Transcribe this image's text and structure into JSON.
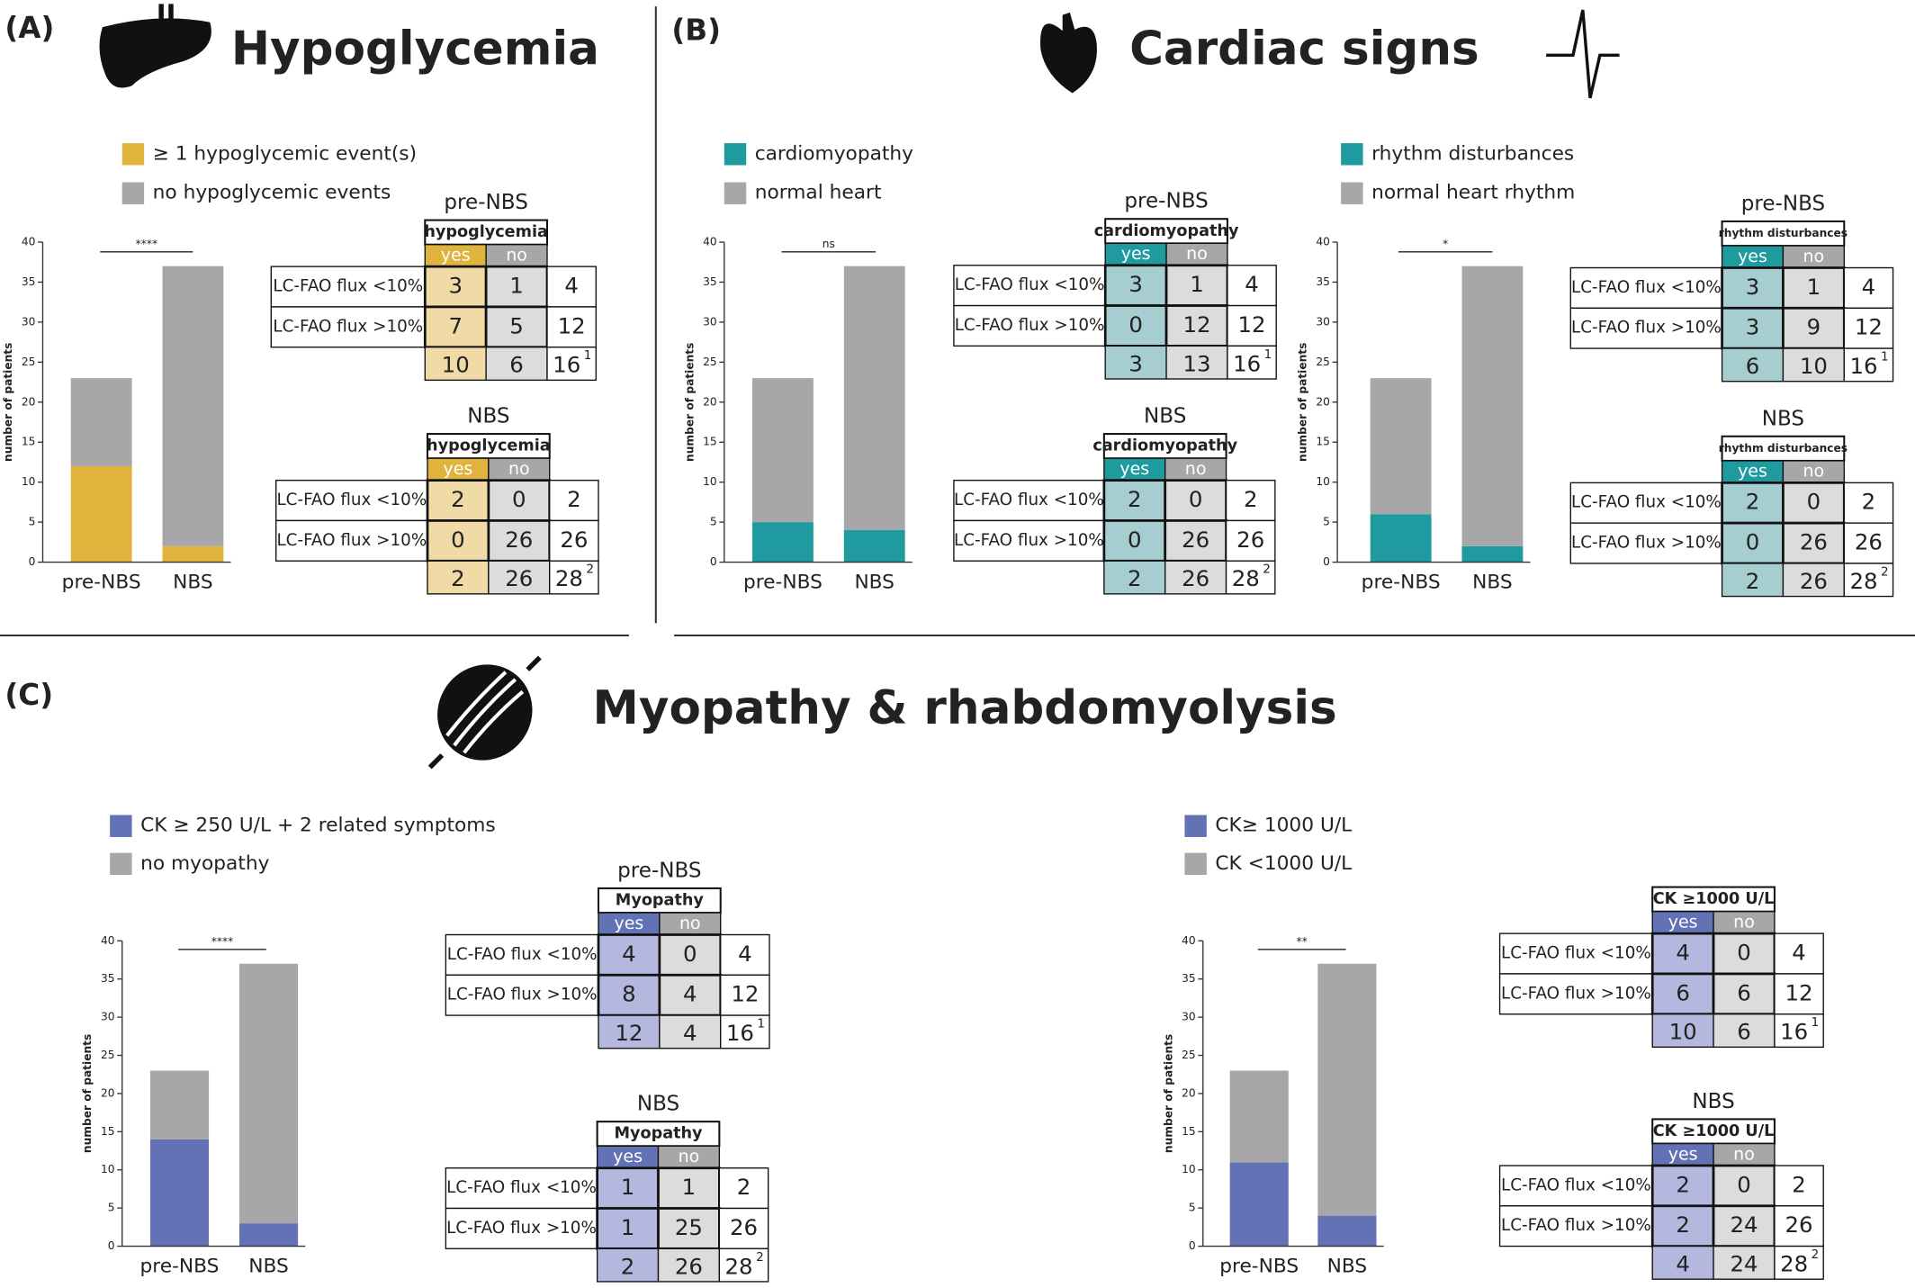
{
  "panels": [
    {
      "label": "(A)",
      "title": "Hypoglycemia"
    },
    {
      "label": "(B)",
      "title": "Cardiac signs"
    },
    {
      "label": "(C)",
      "title": "Myopathy & rhabdomyolysis"
    }
  ],
  "chart_data": [
    {
      "type": "bar",
      "stacked": true,
      "categories": [
        "pre-NBS",
        "NBS"
      ],
      "ylabel": "number of patients",
      "ylim": [
        0,
        40
      ],
      "yticks": [
        0,
        5,
        10,
        15,
        20,
        25,
        30,
        35,
        40
      ],
      "annotation": "****",
      "series": [
        {
          "name": "≥ 1 hypoglycemic event(s)",
          "color": "#e0b43c",
          "values": [
            12,
            2
          ]
        },
        {
          "name": "no hypoglycemic events",
          "color": "#a7a7aa",
          "values": [
            11,
            35
          ]
        }
      ]
    },
    {
      "type": "bar",
      "stacked": true,
      "categories": [
        "pre-NBS",
        "NBS"
      ],
      "ylabel": "number of patients",
      "ylim": [
        0,
        40
      ],
      "yticks": [
        0,
        5,
        10,
        15,
        20,
        25,
        30,
        35,
        40
      ],
      "annotation": "ns",
      "series": [
        {
          "name": "cardiomyopathy",
          "color": "#1f9a9e",
          "values": [
            5,
            4
          ]
        },
        {
          "name": "normal heart",
          "color": "#a7a7aa",
          "values": [
            18,
            33
          ]
        }
      ]
    },
    {
      "type": "bar",
      "stacked": true,
      "categories": [
        "pre-NBS",
        "NBS"
      ],
      "ylabel": "number of patients",
      "ylim": [
        0,
        40
      ],
      "yticks": [
        0,
        5,
        10,
        15,
        20,
        25,
        30,
        35,
        40
      ],
      "annotation": "*",
      "series": [
        {
          "name": "rhythm disturbances",
          "color": "#1f9a9e",
          "values": [
            6,
            2
          ]
        },
        {
          "name": "normal heart rhythm",
          "color": "#a7a7aa",
          "values": [
            17,
            35
          ]
        }
      ]
    },
    {
      "type": "bar",
      "stacked": true,
      "categories": [
        "pre-NBS",
        "NBS"
      ],
      "ylabel": "number of patients",
      "ylim": [
        0,
        40
      ],
      "yticks": [
        0,
        5,
        10,
        15,
        20,
        25,
        30,
        35,
        40
      ],
      "annotation": "****",
      "series": [
        {
          "name": "CK ≥ 250 U/L + 2 related symptoms",
          "color": "#6272b4",
          "values": [
            14,
            3
          ]
        },
        {
          "name": "no myopathy",
          "color": "#a7a7aa",
          "values": [
            9,
            34
          ]
        }
      ]
    },
    {
      "type": "bar",
      "stacked": true,
      "categories": [
        "pre-NBS",
        "NBS"
      ],
      "ylabel": "number of patients",
      "ylim": [
        0,
        40
      ],
      "yticks": [
        0,
        5,
        10,
        15,
        20,
        25,
        30,
        35,
        40
      ],
      "annotation": "**",
      "series": [
        {
          "name": "CK≥ 1000 U/L",
          "color": "#6272b4",
          "values": [
            11,
            4
          ]
        },
        {
          "name": "CK <1000 U/L",
          "color": "#a7a7aa",
          "values": [
            12,
            33
          ]
        }
      ]
    }
  ],
  "tables": [
    {
      "group": "pre-NBS",
      "header": "hypoglycemia",
      "columns": [
        "yes",
        "no"
      ],
      "color": "#e0b43c",
      "cell_color": "#f0dba6",
      "rows": [
        {
          "label": "LC-FAO flux <10%",
          "cells": [
            3,
            1
          ],
          "total": 4
        },
        {
          "label": "LC-FAO flux >10%",
          "cells": [
            7,
            5
          ],
          "total": 12
        }
      ],
      "totals": [
        10,
        6
      ],
      "grand_total": 16,
      "grand_note": "1"
    },
    {
      "group": "NBS",
      "header": "hypoglycemia",
      "columns": [
        "yes",
        "no"
      ],
      "color": "#e0b43c",
      "cell_color": "#f0dba6",
      "rows": [
        {
          "label": "LC-FAO flux <10%",
          "cells": [
            2,
            0
          ],
          "total": 2
        },
        {
          "label": "LC-FAO flux >10%",
          "cells": [
            0,
            26
          ],
          "total": 26
        }
      ],
      "totals": [
        2,
        26
      ],
      "grand_total": 28,
      "grand_note": "2"
    },
    {
      "group": "pre-NBS",
      "header": "cardiomyopathy",
      "columns": [
        "yes",
        "no"
      ],
      "color": "#1f9a9e",
      "cell_color": "#a6cdd0",
      "rows": [
        {
          "label": "LC-FAO flux <10%",
          "cells": [
            3,
            1
          ],
          "total": 4
        },
        {
          "label": "LC-FAO flux >10%",
          "cells": [
            0,
            12
          ],
          "total": 12
        }
      ],
      "totals": [
        3,
        13
      ],
      "grand_total": 16,
      "grand_note": "1"
    },
    {
      "group": "NBS",
      "header": "cardiomyopathy",
      "columns": [
        "yes",
        "no"
      ],
      "color": "#1f9a9e",
      "cell_color": "#a6cdd0",
      "rows": [
        {
          "label": "LC-FAO flux <10%",
          "cells": [
            2,
            0
          ],
          "total": 2
        },
        {
          "label": "LC-FAO flux >10%",
          "cells": [
            0,
            26
          ],
          "total": 26
        }
      ],
      "totals": [
        2,
        26
      ],
      "grand_total": 28,
      "grand_note": "2"
    },
    {
      "group": "pre-NBS",
      "header": "rhythm disturbances",
      "columns": [
        "yes",
        "no"
      ],
      "color": "#1f9a9e",
      "cell_color": "#a6cdd0",
      "rows": [
        {
          "label": "LC-FAO flux <10%",
          "cells": [
            3,
            1
          ],
          "total": 4
        },
        {
          "label": "LC-FAO flux >10%",
          "cells": [
            3,
            9
          ],
          "total": 12
        }
      ],
      "totals": [
        6,
        10
      ],
      "grand_total": 16,
      "grand_note": "1"
    },
    {
      "group": "NBS",
      "header": "rhythm disturbances",
      "columns": [
        "yes",
        "no"
      ],
      "color": "#1f9a9e",
      "cell_color": "#a6cdd0",
      "rows": [
        {
          "label": "LC-FAO flux <10%",
          "cells": [
            2,
            0
          ],
          "total": 2
        },
        {
          "label": "LC-FAO flux >10%",
          "cells": [
            0,
            26
          ],
          "total": 26
        }
      ],
      "totals": [
        2,
        26
      ],
      "grand_total": 28,
      "grand_note": "2"
    },
    {
      "group": "pre-NBS",
      "header": "Myopathy",
      "columns": [
        "yes",
        "no"
      ],
      "color": "#6272b4",
      "cell_color": "#b4b8de",
      "rows": [
        {
          "label": "LC-FAO flux <10%",
          "cells": [
            4,
            0
          ],
          "total": 4
        },
        {
          "label": "LC-FAO flux >10%",
          "cells": [
            8,
            4
          ],
          "total": 12
        }
      ],
      "totals": [
        12,
        4
      ],
      "grand_total": 16,
      "grand_note": "1"
    },
    {
      "group": "NBS",
      "header": "Myopathy",
      "columns": [
        "yes",
        "no"
      ],
      "color": "#6272b4",
      "cell_color": "#b4b8de",
      "rows": [
        {
          "label": "LC-FAO flux <10%",
          "cells": [
            1,
            1
          ],
          "total": 2
        },
        {
          "label": "LC-FAO flux >10%",
          "cells": [
            1,
            25
          ],
          "total": 26
        }
      ],
      "totals": [
        2,
        26
      ],
      "grand_total": 28,
      "grand_note": "2"
    },
    {
      "header": "CK ≥1000 U/L",
      "columns": [
        "yes",
        "no"
      ],
      "color": "#6272b4",
      "cell_color": "#b4b8de",
      "rows": [
        {
          "label": "LC-FAO flux <10%",
          "cells": [
            4,
            0
          ],
          "total": 4
        },
        {
          "label": "LC-FAO flux >10%",
          "cells": [
            6,
            6
          ],
          "total": 12
        }
      ],
      "totals": [
        10,
        6
      ],
      "grand_total": 16,
      "grand_note": "1"
    },
    {
      "group": "NBS",
      "header": "CK ≥1000 U/L",
      "columns": [
        "yes",
        "no"
      ],
      "color": "#6272b4",
      "cell_color": "#b4b8de",
      "rows": [
        {
          "label": "LC-FAO flux <10%",
          "cells": [
            2,
            0
          ],
          "total": 2
        },
        {
          "label": "LC-FAO flux >10%",
          "cells": [
            2,
            24
          ],
          "total": 26
        }
      ],
      "totals": [
        4,
        24
      ],
      "grand_total": 28,
      "grand_note": "2"
    }
  ]
}
